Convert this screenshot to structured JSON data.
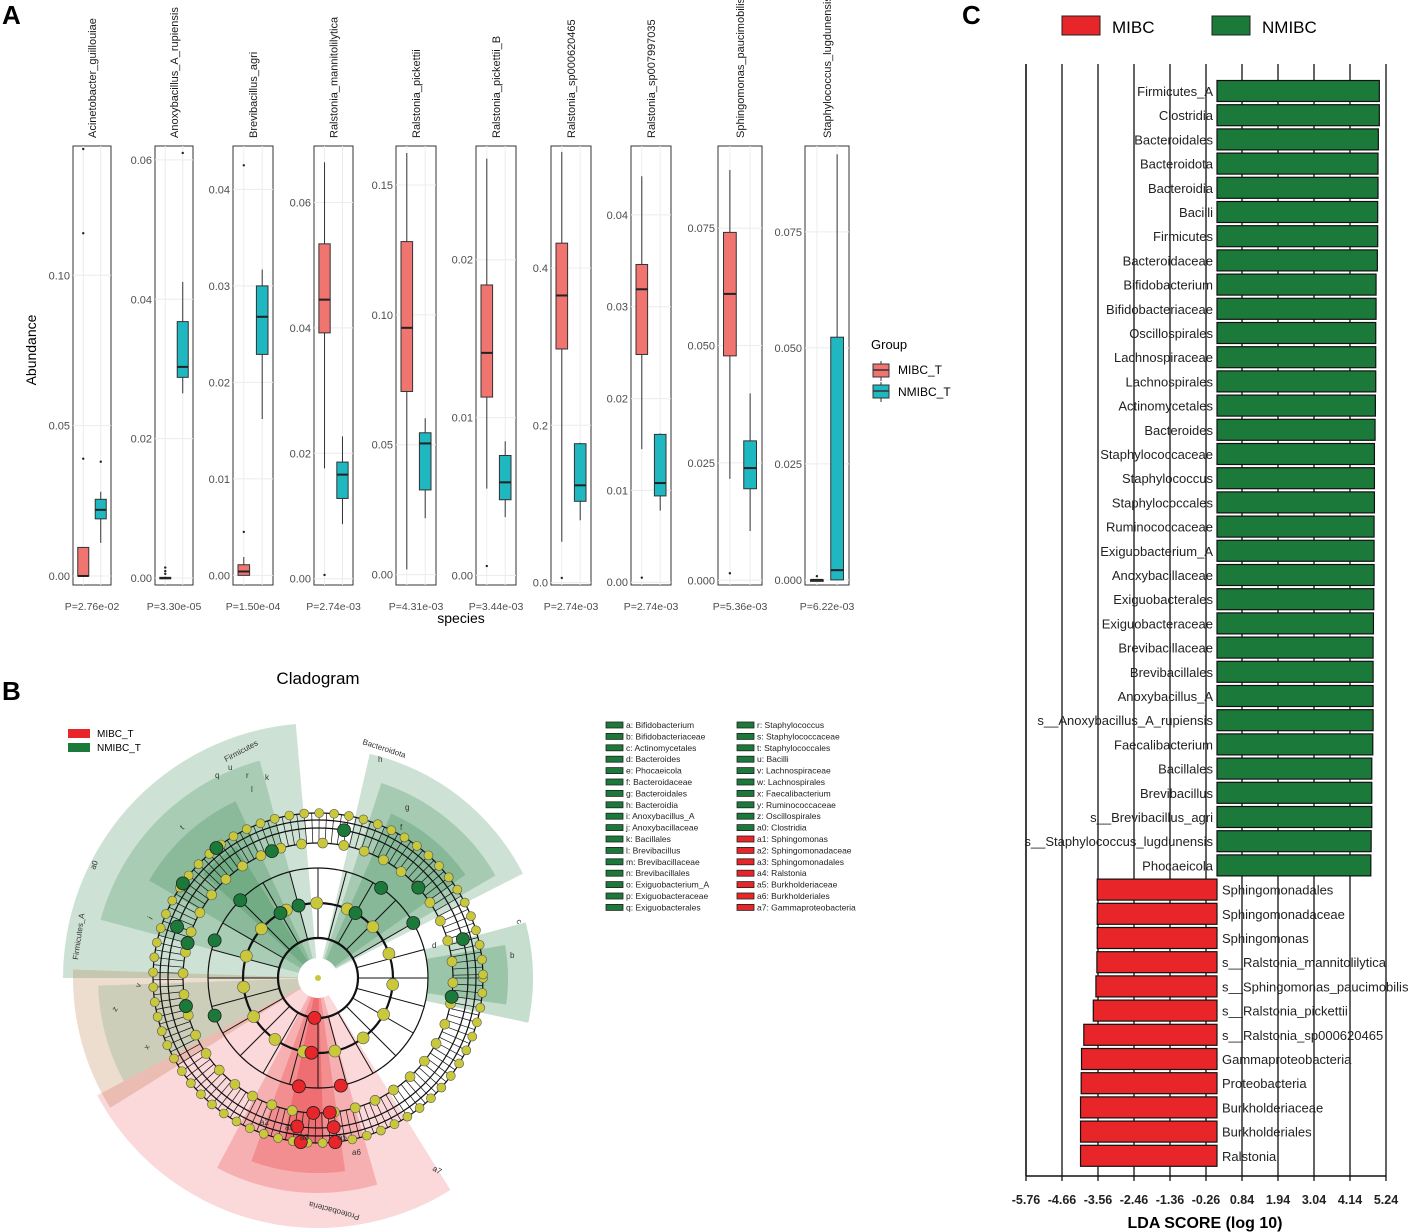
{
  "panels": {
    "a_label": "A",
    "b_label": "B",
    "c_label": "C"
  },
  "colors": {
    "mibc_box": "#f07470",
    "nmibc_box": "#1fb7c0",
    "lda_red": "#e8262a",
    "lda_green": "#1b7a3a",
    "clad_red": "#e8262a",
    "clad_green": "#1b7a3a",
    "node_yellow": "#c8c83a"
  },
  "chart_data": [
    {
      "type": "boxplot",
      "panel": "A",
      "ylabel": "Abundance",
      "xlabel": "species",
      "legend": {
        "title": "Group",
        "entries": [
          "MIBC_T",
          "NMIBC_T"
        ],
        "placement": "right"
      },
      "species": [
        {
          "name": "Acinetobacter_guillouiae",
          "p": "P=2.76e-02",
          "ylim": [
            -0.003,
            0.143
          ],
          "ticks": [
            {
              "v": 0.0,
              "l": "0.00"
            },
            {
              "v": 0.05,
              "l": "0.05"
            },
            {
              "v": 0.1,
              "l": "0.10"
            }
          ],
          "mibc": {
            "q1": 0.0,
            "med": 0.0,
            "q3": 0.0095,
            "lo": 0.0,
            "hi": 0.0095,
            "out": [
              0.039,
              0.114,
              0.142
            ]
          },
          "nmibc": {
            "q1": 0.019,
            "med": 0.022,
            "q3": 0.0255,
            "lo": 0.011,
            "hi": 0.028,
            "out": [
              0.038
            ]
          }
        },
        {
          "name": "Anoxybacillus_A_rupiensis",
          "p": "P=3.30e-05",
          "ylim": [
            -0.001,
            0.062
          ],
          "ticks": [
            {
              "v": 0.0,
              "l": "0.00"
            },
            {
              "v": 0.02,
              "l": "0.02"
            },
            {
              "v": 0.04,
              "l": "0.04"
            },
            {
              "v": 0.06,
              "l": "0.06"
            }
          ],
          "mibc": {
            "q1": 0.0,
            "med": 0.0,
            "q3": 0.0001,
            "lo": 0.0,
            "hi": 0.0002,
            "out": [
              0.0015,
              0.001,
              0.0006
            ]
          },
          "nmibc": {
            "q1": 0.0288,
            "med": 0.0303,
            "q3": 0.0368,
            "lo": 0.0265,
            "hi": 0.0425,
            "out": [
              0.061
            ]
          }
        },
        {
          "name": "Brevibacillus_agri",
          "p": "P=1.50e-04",
          "ylim": [
            -0.001,
            0.0445
          ],
          "ticks": [
            {
              "v": 0.0,
              "l": "0.00"
            },
            {
              "v": 0.01,
              "l": "0.01"
            },
            {
              "v": 0.02,
              "l": "0.02"
            },
            {
              "v": 0.03,
              "l": "0.03"
            },
            {
              "v": 0.04,
              "l": "0.04"
            }
          ],
          "mibc": {
            "q1": 0.0,
            "med": 0.0004,
            "q3": 0.0011,
            "lo": 0.0,
            "hi": 0.0019,
            "out": [
              0.0045,
              0.0425
            ]
          },
          "nmibc": {
            "q1": 0.0229,
            "med": 0.0268,
            "q3": 0.03,
            "lo": 0.0162,
            "hi": 0.0317,
            "out": []
          }
        },
        {
          "name": "Ralstonia_mannitolilytica",
          "p": "P=2.74e-03",
          "ylim": [
            -0.001,
            0.069
          ],
          "ticks": [
            {
              "v": 0.0,
              "l": "0.00"
            },
            {
              "v": 0.02,
              "l": "0.02"
            },
            {
              "v": 0.04,
              "l": "0.04"
            },
            {
              "v": 0.06,
              "l": "0.06"
            }
          ],
          "mibc": {
            "q1": 0.0392,
            "med": 0.0445,
            "q3": 0.0534,
            "lo": 0.0176,
            "hi": 0.0664,
            "out": [
              0.0006
            ]
          },
          "nmibc": {
            "q1": 0.0128,
            "med": 0.0166,
            "q3": 0.0186,
            "lo": 0.0087,
            "hi": 0.0227,
            "out": []
          }
        },
        {
          "name": "Ralstonia_pickettii",
          "p": "P=4.31e-03",
          "ylim": [
            -0.004,
            0.165
          ],
          "ticks": [
            {
              "v": 0.0,
              "l": "0.00"
            },
            {
              "v": 0.05,
              "l": "0.05"
            },
            {
              "v": 0.1,
              "l": "0.10"
            },
            {
              "v": 0.15,
              "l": "0.15"
            }
          ],
          "mibc": {
            "q1": 0.0705,
            "med": 0.095,
            "q3": 0.1282,
            "lo": 0.002,
            "hi": 0.1623,
            "out": []
          },
          "nmibc": {
            "q1": 0.0326,
            "med": 0.0505,
            "q3": 0.0546,
            "lo": 0.0217,
            "hi": 0.0602,
            "out": []
          }
        },
        {
          "name": "Ralstonia_pickettii_B",
          "p": "P=3.44e-03",
          "ylim": [
            -0.0006,
            0.0272
          ],
          "ticks": [
            {
              "v": 0.0,
              "l": "0.00"
            },
            {
              "v": 0.01,
              "l": "0.01"
            },
            {
              "v": 0.02,
              "l": "0.02"
            }
          ],
          "mibc": {
            "q1": 0.0113,
            "med": 0.0141,
            "q3": 0.0184,
            "lo": 0.0055,
            "hi": 0.0264,
            "out": [
              0.0006
            ]
          },
          "nmibc": {
            "q1": 0.0048,
            "med": 0.0059,
            "q3": 0.0076,
            "lo": 0.0037,
            "hi": 0.0085,
            "out": []
          }
        },
        {
          "name": "Ralstonia_sp000620465",
          "p": "P=2.74e-03",
          "ylim": [
            -0.003,
            0.555
          ],
          "ticks": [
            {
              "v": 0.0,
              "l": "0.0"
            },
            {
              "v": 0.2,
              "l": "0.2"
            },
            {
              "v": 0.4,
              "l": "0.4"
            }
          ],
          "mibc": {
            "q1": 0.297,
            "med": 0.365,
            "q3": 0.4315,
            "lo": 0.052,
            "hi": 0.5475,
            "out": [
              0.006
            ]
          },
          "nmibc": {
            "q1": 0.1034,
            "med": 0.1237,
            "q3": 0.1766,
            "lo": 0.0793,
            "hi": 0.1777,
            "out": []
          }
        },
        {
          "name": "Ralstonia_sp007997035",
          "p": "P=2.74e-03",
          "ylim": [
            -0.0003,
            0.0475
          ],
          "ticks": [
            {
              "v": 0.0,
              "l": "0.00"
            },
            {
              "v": 0.01,
              "l": "0.01"
            },
            {
              "v": 0.02,
              "l": "0.02"
            },
            {
              "v": 0.03,
              "l": "0.03"
            },
            {
              "v": 0.04,
              "l": "0.04"
            }
          ],
          "mibc": {
            "q1": 0.0248,
            "med": 0.0319,
            "q3": 0.0346,
            "lo": 0.0145,
            "hi": 0.0442,
            "out": [
              0.0005
            ]
          },
          "nmibc": {
            "q1": 0.0094,
            "med": 0.0108,
            "q3": 0.0161,
            "lo": 0.0078,
            "hi": 0.0162,
            "out": []
          }
        },
        {
          "name": "Sphingomonas_paucimobilis",
          "p": "P=5.36e-03",
          "ylim": [
            -0.001,
            0.0925
          ],
          "ticks": [
            {
              "v": 0.0,
              "l": "0.000"
            },
            {
              "v": 0.025,
              "l": "0.025"
            },
            {
              "v": 0.05,
              "l": "0.050"
            },
            {
              "v": 0.075,
              "l": "0.075"
            }
          ],
          "mibc": {
            "q1": 0.0478,
            "med": 0.061,
            "q3": 0.0741,
            "lo": 0.0216,
            "hi": 0.0874,
            "out": [
              0.0015
            ]
          },
          "nmibc": {
            "q1": 0.0195,
            "med": 0.0239,
            "q3": 0.0297,
            "lo": 0.0105,
            "hi": 0.0398,
            "out": []
          }
        },
        {
          "name": "Staphylococcus_lugdunensis",
          "p": "P=6.22e-03",
          "ylim": [
            -0.0011,
            0.0935
          ],
          "ticks": [
            {
              "v": 0.0,
              "l": "0.000"
            },
            {
              "v": 0.025,
              "l": "0.025"
            },
            {
              "v": 0.05,
              "l": "0.050"
            },
            {
              "v": 0.075,
              "l": "0.075"
            }
          ],
          "mibc": {
            "q1": 0.0,
            "med": 0.0,
            "q3": 0.0,
            "lo": 0.0,
            "hi": 0.0,
            "out": [
              0.0008
            ]
          },
          "nmibc": {
            "q1": 0.0,
            "med": 0.0021,
            "q3": 0.0523,
            "lo": 0.0,
            "hi": 0.0917,
            "out": []
          }
        }
      ]
    },
    {
      "type": "cladogram",
      "panel": "B",
      "title": "Cladogram",
      "legend_groups": [
        "MIBC_T",
        "NMIBC_T"
      ],
      "clade_labels": [
        "Firmicutes",
        "Bacteroidota",
        "Firmicutes_A",
        "Proteobacteria",
        "a0",
        "a1",
        "a2",
        "a3",
        "a5",
        "a6",
        "a7",
        "b",
        "c",
        "d",
        "f",
        "g",
        "h",
        "i",
        "k",
        "l",
        "q",
        "r",
        "t",
        "u",
        "v",
        "x",
        "z"
      ],
      "key_green": [
        "a: Bifidobacterium",
        "b: Bifidobacteriaceae",
        "c: Actinomycetales",
        "d: Bacteroides",
        "e: Phocaeicola",
        "f: Bacteroidaceae",
        "g: Bacteroidales",
        "h: Bacteroidia",
        "i: Anoxybacillus_A",
        "j: Anoxybacillaceae",
        "k: Bacillales",
        "l: Brevibacillus",
        "m: Brevibacillaceae",
        "n: Brevibacillales",
        "o: Exiguobacterium_A",
        "p: Exiguobacteraceae",
        "q: Exiguobacterales",
        "r: Staphylococcus",
        "s: Staphylococcaceae",
        "t: Staphylococcales",
        "u: Bacilli",
        "v: Lachnospiraceae",
        "w: Lachnospirales",
        "x: Faecalibacterium",
        "y: Ruminococcaceae",
        "z: Oscillospirales",
        "a0: Clostridia"
      ],
      "key_red": [
        "a1: Sphingomonas",
        "a2: Sphingomonadaceae",
        "a3: Sphingomonadales",
        "a4: Ralstonia",
        "a5: Burkholderiaceae",
        "a6: Burkholderiales",
        "a7: Gammaproteobacteria"
      ]
    },
    {
      "type": "bar",
      "panel": "C",
      "orientation": "horizontal",
      "legend": [
        "MIBC",
        "NMIBC"
      ],
      "xlabel": "LDA SCORE (log 10)",
      "xlim": [
        -5.76,
        5.24
      ],
      "xticks": [
        -5.76,
        -4.66,
        -3.56,
        -2.46,
        -1.36,
        -0.26,
        0.84,
        1.94,
        3.04,
        4.14,
        5.24
      ],
      "xtick_labels": [
        "-5.76",
        "-4.66",
        "-3.56",
        "-2.46",
        "-1.36",
        "-0.26",
        "0.84",
        "1.94",
        "3.04",
        "4.14",
        "5.24"
      ],
      "categories": [
        "Firmicutes_A",
        "Clostridia",
        "Bacteroidales",
        "Bacteroidota",
        "Bacteroidia",
        "Bacilli",
        "Firmicutes",
        "Bacteroidaceae",
        "Bifidobacterium",
        "Bifidobacteriaceae",
        "Oscillospirales",
        "Lachnospiraceae",
        "Lachnospirales",
        "Actinomycetales",
        "Bacteroides",
        "Staphylococcaceae",
        "Staphylococcus",
        "Staphylococcales",
        "Ruminococcaceae",
        "Exiguobacterium_A",
        "Anoxybacillaceae",
        "Exiguobacterales",
        "Exiguobacteraceae",
        "Brevibacillaceae",
        "Brevibacillales",
        "Anoxybacillus_A",
        "s__Anoxybacillus_A_rupiensis",
        "Faecalibacterium",
        "Bacillales",
        "Brevibacillus",
        "s__Brevibacillus_agri",
        "s__Staphylococcus_lugdunensis",
        "Phocaeicola",
        "Sphingomonadales",
        "Sphingomonadaceae",
        "Sphingomonas",
        "s__Ralstonia_mannitolilytica",
        "s__Sphingomonas_paucimobilis",
        "s__Ralstonia_pickettii",
        "s__Ralstonia_sp000620465",
        "Gammaproteobacteria",
        "Proteobacteria",
        "Burkholderiaceae",
        "Burkholderiales",
        "Ralstonia"
      ],
      "values": [
        4.96,
        4.96,
        4.93,
        4.92,
        4.92,
        4.91,
        4.91,
        4.9,
        4.86,
        4.86,
        4.85,
        4.85,
        4.85,
        4.84,
        4.83,
        4.81,
        4.81,
        4.81,
        4.8,
        4.8,
        4.8,
        4.79,
        4.78,
        4.77,
        4.77,
        4.77,
        4.77,
        4.76,
        4.73,
        4.73,
        4.73,
        4.71,
        4.7,
        -3.66,
        -3.66,
        -3.66,
        -3.67,
        -3.7,
        -3.78,
        -4.07,
        -4.14,
        -4.15,
        -4.17,
        -4.17,
        -4.17
      ],
      "groups": [
        "NMIBC",
        "NMIBC",
        "NMIBC",
        "NMIBC",
        "NMIBC",
        "NMIBC",
        "NMIBC",
        "NMIBC",
        "NMIBC",
        "NMIBC",
        "NMIBC",
        "NMIBC",
        "NMIBC",
        "NMIBC",
        "NMIBC",
        "NMIBC",
        "NMIBC",
        "NMIBC",
        "NMIBC",
        "NMIBC",
        "NMIBC",
        "NMIBC",
        "NMIBC",
        "NMIBC",
        "NMIBC",
        "NMIBC",
        "NMIBC",
        "NMIBC",
        "NMIBC",
        "NMIBC",
        "NMIBC",
        "NMIBC",
        "NMIBC",
        "MIBC",
        "MIBC",
        "MIBC",
        "MIBC",
        "MIBC",
        "MIBC",
        "MIBC",
        "MIBC",
        "MIBC",
        "MIBC",
        "MIBC",
        "MIBC"
      ]
    }
  ]
}
